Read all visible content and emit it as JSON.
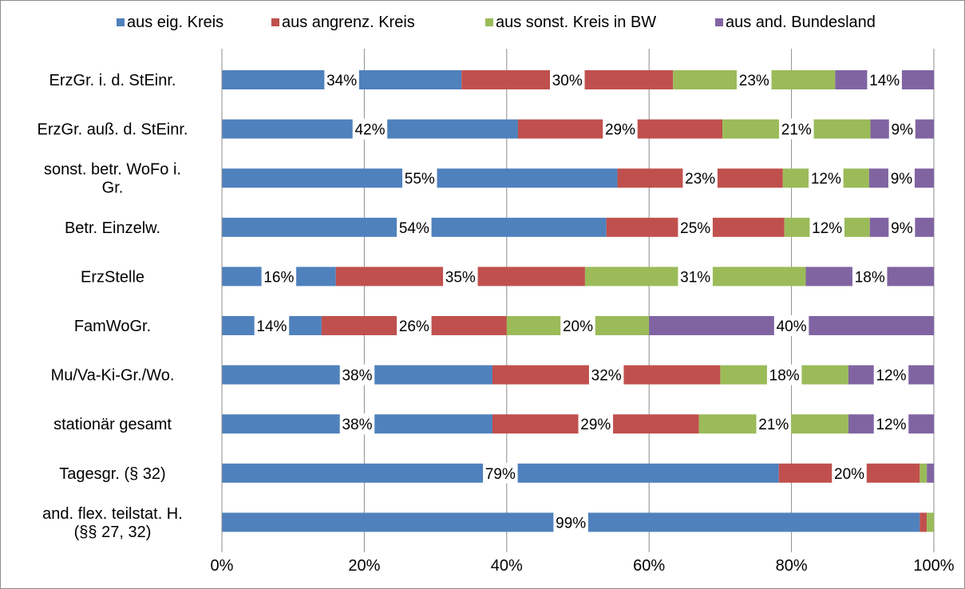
{
  "chart_data": {
    "type": "bar",
    "orientation": "horizontal",
    "stacked": "percent",
    "title": "",
    "xlabel": "",
    "ylabel": "",
    "xlim": [
      0,
      100
    ],
    "x_ticks": [
      "0%",
      "20%",
      "40%",
      "60%",
      "80%",
      "100%"
    ],
    "grid": "vertical",
    "legend_position": "top",
    "categories": [
      "ErzGr. i. d. StEinr.",
      "ErzGr. auß. d. StEinr.",
      "sonst. betr. WoFo i. Gr.",
      "Betr. Einzelw.",
      "ErzStelle",
      "FamWoGr.",
      "Mu/Va-Ki-Gr./Wo.",
      "stationär gesamt",
      "Tagesgr. (§ 32)",
      "and. flex. teilstat. H. (§§ 27, 32)"
    ],
    "category_lines": [
      [
        "ErzGr. i. d. StEinr."
      ],
      [
        "ErzGr. auß. d. StEinr."
      ],
      [
        "sonst. betr. WoFo i.",
        "Gr."
      ],
      [
        "Betr. Einzelw."
      ],
      [
        "ErzStelle"
      ],
      [
        "FamWoGr."
      ],
      [
        "Mu/Va-Ki-Gr./Wo."
      ],
      [
        "stationär gesamt"
      ],
      [
        "Tagesgr. (§ 32)"
      ],
      [
        "and. flex. teilstat. H.",
        "(§§ 27, 32)"
      ]
    ],
    "series": [
      {
        "name": "aus eig. Kreis",
        "color": "#4f81bd",
        "values": [
          34,
          42,
          55,
          54,
          16,
          14,
          38,
          38,
          79,
          99
        ],
        "labels": [
          "34%",
          "42%",
          "55%",
          "54%",
          "16%",
          "14%",
          "38%",
          "38%",
          "79%",
          "99%"
        ]
      },
      {
        "name": "aus angrenz. Kreis",
        "color": "#c0504d",
        "values": [
          30,
          29,
          23,
          25,
          35,
          26,
          32,
          29,
          20,
          1
        ],
        "labels": [
          "30%",
          "29%",
          "23%",
          "25%",
          "35%",
          "26%",
          "32%",
          "29%",
          "20%",
          ""
        ]
      },
      {
        "name": "aus sonst. Kreis in BW",
        "color": "#9bbb59",
        "values": [
          23,
          21,
          12,
          12,
          31,
          20,
          18,
          21,
          1,
          1
        ],
        "labels": [
          "23%",
          "21%",
          "12%",
          "12%",
          "31%",
          "20%",
          "18%",
          "21%",
          "",
          ""
        ]
      },
      {
        "name": "aus and. Bundesland",
        "color": "#8064a2",
        "values": [
          14,
          9,
          9,
          9,
          18,
          40,
          12,
          12,
          1,
          0
        ],
        "labels": [
          "14%",
          "9%",
          "9%",
          "9%",
          "18%",
          "40%",
          "12%",
          "12%",
          "",
          ""
        ]
      }
    ]
  }
}
